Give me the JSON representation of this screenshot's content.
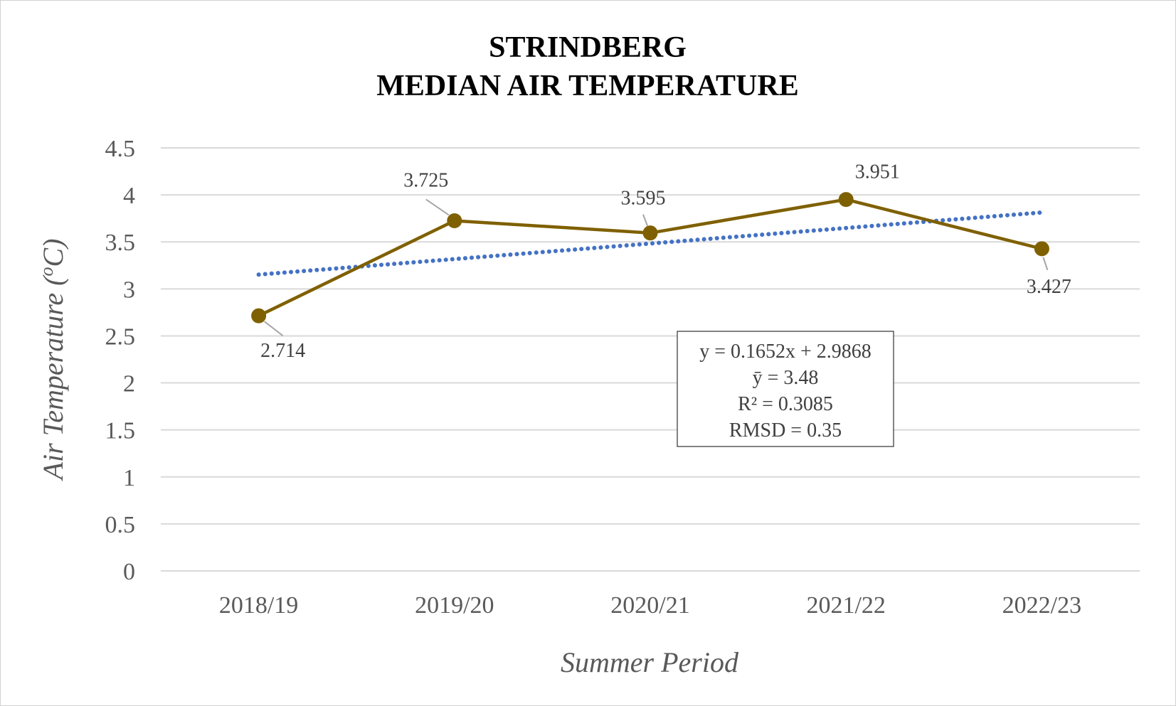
{
  "chart_data": {
    "type": "line",
    "title": [
      "STRINDBERG",
      "MEDIAN AIR TEMPERATURE"
    ],
    "xlabel": "Summer Period",
    "ylabel_main": "Air Temperature (",
    "ylabel_sup": "o",
    "ylabel_end": "C)",
    "categories": [
      "2018/19",
      "2019/20",
      "2020/21",
      "2021/22",
      "2022/23"
    ],
    "ylim": [
      0,
      4.5
    ],
    "yticks": [
      "0",
      "0.5",
      "1",
      "1.5",
      "2",
      "2.5",
      "3",
      "3.5",
      "4",
      "4.5"
    ],
    "grid": true,
    "series": [
      {
        "values": [
          2.714,
          3.725,
          3.595,
          3.951,
          3.427
        ],
        "labels": [
          "2.714",
          "3.725",
          "3.595",
          "3.951",
          "3.427"
        ],
        "color": "#7f6000"
      }
    ],
    "trendline": {
      "slope": 0.1652,
      "intercept": 2.9868,
      "color": "#4472c4",
      "style": "dotted"
    },
    "annotation_box": {
      "lines": [
        "y = 0.1652x + 2.9868",
        "ȳ = 3.48",
        "R² = 0.3085",
        "RMSD = 0.35"
      ]
    }
  }
}
